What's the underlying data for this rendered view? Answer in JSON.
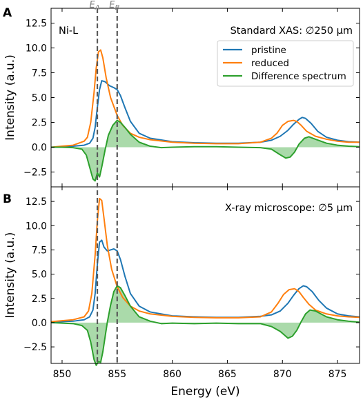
{
  "chart_data": [
    {
      "type": "line",
      "panel": "A",
      "annotations": [
        "Ni-L",
        "Standard XAS: ∅250 μm"
      ],
      "xlabel": "",
      "ylabel": "Intensity (a.u.)",
      "xlim": [
        849,
        877
      ],
      "ylim": [
        -4.0,
        14.0
      ],
      "yticks": [
        -2.5,
        0.0,
        2.5,
        5.0,
        7.5,
        10.0,
        12.5
      ],
      "legend": {
        "placement": "upper-right",
        "entries": [
          "pristine",
          "reduced",
          "Difference spectrum"
        ]
      },
      "series": [
        {
          "name": "pristine",
          "color": "#1f77b4",
          "x": [
            849,
            850,
            851,
            852,
            852.5,
            852.8,
            853.0,
            853.2,
            853.4,
            853.6,
            853.9,
            854.3,
            854.7,
            855.0,
            855.3,
            855.7,
            856.2,
            857,
            858,
            860,
            862,
            864,
            866,
            868,
            869,
            869.8,
            870.5,
            871.0,
            871.5,
            871.8,
            872.1,
            872.6,
            873.2,
            874,
            875,
            876,
            877
          ],
          "y": [
            0.0,
            0.05,
            0.1,
            0.2,
            0.4,
            0.9,
            2.0,
            4.0,
            5.8,
            6.7,
            6.6,
            6.2,
            6.0,
            5.8,
            5.2,
            4.0,
            2.6,
            1.4,
            0.9,
            0.55,
            0.45,
            0.4,
            0.4,
            0.5,
            0.7,
            1.1,
            1.7,
            2.3,
            2.8,
            3.0,
            2.9,
            2.4,
            1.6,
            1.0,
            0.7,
            0.55,
            0.5
          ]
        },
        {
          "name": "reduced",
          "color": "#ff7f0e",
          "x": [
            849,
            850,
            851,
            852,
            852.3,
            852.6,
            852.9,
            853.1,
            853.3,
            853.5,
            853.7,
            854.0,
            854.4,
            855.0,
            855.5,
            856.2,
            857,
            858,
            860,
            862,
            864,
            866,
            868,
            869,
            869.5,
            870.0,
            870.5,
            871.0,
            871.3,
            871.7,
            872.2,
            873,
            874,
            875,
            876,
            877
          ],
          "y": [
            0.0,
            0.1,
            0.2,
            0.6,
            1.0,
            2.5,
            5.5,
            8.0,
            9.6,
            9.8,
            9.0,
            7.0,
            5.0,
            3.2,
            2.2,
            1.4,
            1.0,
            0.75,
            0.5,
            0.4,
            0.35,
            0.35,
            0.5,
            0.9,
            1.4,
            2.2,
            2.6,
            2.7,
            2.6,
            2.2,
            1.6,
            1.1,
            0.8,
            0.6,
            0.5,
            0.5
          ]
        },
        {
          "name": "Difference spectrum",
          "color": "#2ca02c",
          "fill": "#9bd49b",
          "x": [
            849,
            850,
            851,
            851.8,
            852.2,
            852.5,
            852.8,
            853.0,
            853.2,
            853.4,
            853.6,
            853.9,
            854.2,
            854.6,
            855.0,
            855.3,
            855.7,
            856.2,
            857,
            858,
            859,
            860,
            862,
            864,
            866,
            868,
            869,
            869.7,
            870.3,
            870.7,
            871.1,
            871.5,
            872.0,
            872.4,
            873.0,
            874,
            875,
            876,
            877
          ],
          "y": [
            0.0,
            0.0,
            -0.05,
            -0.2,
            -0.8,
            -2.0,
            -3.2,
            -3.4,
            -2.6,
            -3.0,
            -2.0,
            -0.3,
            1.2,
            2.2,
            2.7,
            2.5,
            2.0,
            1.3,
            0.5,
            0.1,
            -0.05,
            0.0,
            0.05,
            0.05,
            0.0,
            -0.05,
            -0.2,
            -0.7,
            -1.1,
            -1.0,
            -0.5,
            0.3,
            0.9,
            1.05,
            0.8,
            0.4,
            0.2,
            0.1,
            0.05
          ]
        }
      ]
    },
    {
      "type": "line",
      "panel": "B",
      "annotations": [
        "X-ray microscope: ∅5 μm"
      ],
      "xlabel": "Energy (eV)",
      "ylabel": "Intensity (a.u.)",
      "xlim": [
        849,
        877
      ],
      "ylim": [
        -4.2,
        14.0
      ],
      "yticks": [
        -2.5,
        0.0,
        2.5,
        5.0,
        7.5,
        10.0,
        12.5
      ],
      "xticks": [
        850,
        855,
        860,
        865,
        870,
        875
      ],
      "series": [
        {
          "name": "pristine",
          "color": "#1f77b4",
          "x": [
            849,
            850,
            851,
            852,
            852.5,
            852.8,
            853.0,
            853.2,
            853.4,
            853.6,
            853.8,
            854.1,
            854.4,
            854.7,
            855.0,
            855.3,
            855.7,
            856.2,
            857,
            858,
            860,
            862,
            864,
            866,
            868,
            869,
            869.8,
            870.5,
            871.0,
            871.5,
            871.9,
            872.2,
            872.7,
            873.3,
            874,
            875,
            876,
            877
          ],
          "y": [
            0.05,
            0.1,
            0.15,
            0.3,
            0.6,
            1.3,
            3.0,
            6.0,
            8.3,
            8.5,
            7.8,
            7.4,
            7.5,
            7.6,
            7.4,
            6.5,
            4.8,
            3.0,
            1.7,
            1.1,
            0.7,
            0.6,
            0.55,
            0.55,
            0.65,
            0.8,
            1.2,
            2.0,
            2.8,
            3.5,
            3.8,
            3.7,
            3.2,
            2.3,
            1.5,
            0.9,
            0.7,
            0.6
          ]
        },
        {
          "name": "reduced",
          "color": "#ff7f0e",
          "x": [
            849,
            850,
            851,
            852,
            852.4,
            852.7,
            853.0,
            853.2,
            853.4,
            853.6,
            853.8,
            854.1,
            854.5,
            855.0,
            855.5,
            856.2,
            857,
            858,
            860,
            862,
            864,
            866,
            868,
            869,
            869.6,
            870.1,
            870.6,
            871.1,
            871.5,
            871.9,
            872.4,
            873,
            874,
            875,
            876,
            877
          ],
          "y": [
            0.1,
            0.2,
            0.3,
            0.6,
            1.2,
            3.0,
            7.0,
            10.5,
            12.8,
            12.6,
            10.8,
            8.0,
            5.5,
            3.7,
            2.6,
            1.7,
            1.2,
            0.9,
            0.65,
            0.55,
            0.5,
            0.5,
            0.6,
            1.1,
            2.0,
            2.9,
            3.4,
            3.5,
            3.2,
            2.6,
            1.9,
            1.3,
            0.9,
            0.7,
            0.6,
            0.55
          ]
        },
        {
          "name": "Difference spectrum",
          "color": "#2ca02c",
          "fill": "#9bd49b",
          "x": [
            849,
            850,
            851,
            851.8,
            852.3,
            852.6,
            852.9,
            853.1,
            853.3,
            853.5,
            853.7,
            853.9,
            854.1,
            854.4,
            854.7,
            855.0,
            855.3,
            855.7,
            856.2,
            857,
            858,
            859,
            860,
            862,
            864,
            866,
            868,
            869,
            869.8,
            870.5,
            870.9,
            871.3,
            871.7,
            872.1,
            872.5,
            873.0,
            874,
            875,
            876,
            877
          ],
          "y": [
            0.0,
            -0.05,
            -0.1,
            -0.3,
            -0.8,
            -2.0,
            -3.8,
            -4.4,
            -4.0,
            -4.1,
            -3.0,
            -1.5,
            0.0,
            1.8,
            3.2,
            3.8,
            3.6,
            2.8,
            1.7,
            0.6,
            0.15,
            -0.1,
            -0.05,
            -0.1,
            -0.05,
            -0.1,
            -0.1,
            -0.4,
            -0.9,
            -1.6,
            -1.4,
            -0.8,
            0.1,
            0.9,
            1.3,
            1.2,
            0.6,
            0.3,
            0.15,
            0.05
          ]
        }
      ]
    }
  ],
  "vertical_lines": [
    {
      "label": "E_A",
      "label_main": "E",
      "label_sub": "A",
      "x": 853.2,
      "color": "#595959"
    },
    {
      "label": "E_B",
      "label_main": "E",
      "label_sub": "B",
      "x": 855.0,
      "color": "#595959"
    }
  ]
}
